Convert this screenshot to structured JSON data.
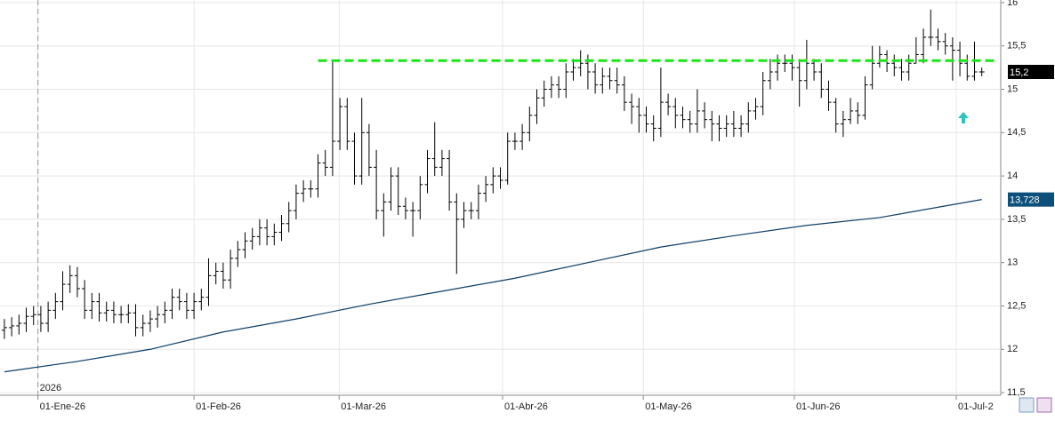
{
  "chart_data": {
    "type": "ohlc",
    "color": "#000000",
    "open": [
      12.22,
      12.25,
      12.27,
      12.3,
      12.38,
      12.4,
      12.3,
      12.45,
      12.55,
      12.75,
      12.85,
      12.7,
      12.45,
      12.55,
      12.42,
      12.45,
      12.4,
      12.4,
      12.42,
      12.25,
      12.3,
      12.35,
      12.4,
      12.45,
      12.6,
      12.55,
      12.45,
      12.55,
      12.6,
      12.85,
      12.9,
      12.8,
      13.05,
      13.15,
      13.25,
      13.3,
      13.4,
      13.3,
      13.35,
      13.45,
      13.6,
      13.8,
      13.85,
      13.85,
      14.15,
      14.1,
      14.4,
      14.8,
      14.4,
      14.0,
      14.5,
      14.1,
      13.6,
      13.7,
      14.0,
      13.65,
      13.6,
      13.6,
      13.9,
      14.2,
      14.1,
      14.2,
      13.7,
      13.5,
      13.6,
      13.6,
      13.8,
      13.9,
      14.0,
      13.95,
      14.4,
      14.4,
      14.5,
      14.7,
      14.9,
      15.0,
      15.05,
      15.0,
      15.2,
      15.25,
      15.3,
      15.2,
      15.05,
      15.15,
      15.1,
      15.05,
      14.85,
      14.8,
      14.7,
      14.6,
      14.55,
      14.85,
      14.8,
      14.7,
      14.65,
      14.6,
      14.75,
      14.65,
      14.6,
      14.55,
      14.6,
      14.55,
      14.6,
      14.75,
      14.8,
      15.1,
      15.2,
      15.3,
      15.3,
      15.25,
      15.1,
      15.3,
      15.2,
      15.0,
      14.85,
      14.6,
      14.65,
      14.75,
      14.7,
      15.05,
      15.3,
      15.4,
      15.3,
      15.25,
      15.2,
      15.3,
      15.4,
      15.6,
      15.6,
      15.55,
      15.5,
      15.45,
      15.3,
      15.15,
      15.2
    ],
    "high": [
      12.35,
      12.37,
      12.4,
      12.48,
      12.5,
      12.5,
      12.55,
      12.65,
      12.9,
      12.97,
      12.95,
      12.8,
      12.65,
      12.65,
      12.55,
      12.55,
      12.5,
      12.52,
      12.52,
      12.4,
      12.45,
      12.5,
      12.55,
      12.7,
      12.7,
      12.65,
      12.65,
      12.7,
      13.05,
      13.0,
      13.0,
      13.15,
      13.25,
      13.35,
      13.4,
      13.5,
      13.5,
      13.45,
      13.55,
      13.7,
      13.9,
      13.95,
      13.95,
      14.25,
      14.3,
      15.32,
      14.9,
      14.9,
      14.5,
      14.9,
      14.6,
      14.3,
      13.8,
      14.1,
      14.1,
      13.75,
      13.7,
      14.0,
      14.3,
      14.62,
      14.3,
      14.3,
      13.8,
      13.7,
      13.7,
      13.9,
      14.0,
      14.1,
      14.1,
      14.5,
      14.5,
      14.6,
      14.8,
      15.0,
      15.1,
      15.15,
      15.15,
      15.3,
      15.35,
      15.45,
      15.4,
      15.3,
      15.25,
      15.25,
      15.25,
      15.15,
      14.95,
      14.9,
      14.8,
      14.7,
      15.25,
      14.95,
      14.9,
      14.8,
      14.75,
      15.0,
      14.85,
      14.75,
      14.7,
      14.7,
      14.75,
      14.7,
      14.85,
      14.9,
      15.2,
      15.35,
      15.4,
      15.4,
      15.4,
      15.35,
      15.57,
      15.35,
      15.3,
      15.1,
      14.9,
      14.75,
      14.9,
      14.85,
      15.15,
      15.5,
      15.5,
      15.45,
      15.4,
      15.35,
      15.4,
      15.6,
      15.7,
      15.92,
      15.7,
      15.65,
      15.6,
      15.55,
      15.4,
      15.55,
      15.25
    ],
    "low": [
      12.12,
      12.15,
      12.17,
      12.2,
      12.28,
      12.2,
      12.2,
      12.35,
      12.45,
      12.65,
      12.6,
      12.35,
      12.35,
      12.32,
      12.32,
      12.3,
      12.3,
      12.3,
      12.15,
      12.15,
      12.2,
      12.25,
      12.3,
      12.35,
      12.45,
      12.35,
      12.35,
      12.45,
      12.5,
      12.75,
      12.7,
      12.7,
      12.95,
      13.05,
      13.15,
      13.2,
      13.2,
      13.2,
      13.25,
      13.35,
      13.5,
      13.7,
      13.75,
      13.75,
      14.0,
      14.0,
      14.3,
      14.3,
      13.9,
      13.9,
      14.0,
      13.5,
      13.3,
      13.6,
      13.55,
      13.5,
      13.3,
      13.5,
      13.8,
      14.0,
      14.0,
      13.6,
      12.87,
      13.4,
      13.5,
      13.5,
      13.7,
      13.8,
      13.85,
      13.9,
      14.3,
      14.3,
      14.4,
      14.6,
      14.8,
      14.9,
      14.9,
      14.9,
      15.1,
      15.15,
      15.0,
      14.95,
      14.95,
      15.0,
      14.95,
      14.75,
      14.6,
      14.5,
      14.5,
      14.4,
      14.45,
      14.7,
      14.55,
      14.55,
      14.5,
      14.5,
      14.55,
      14.4,
      14.4,
      14.45,
      14.45,
      14.45,
      14.5,
      14.65,
      14.7,
      15.0,
      15.1,
      15.2,
      15.1,
      14.8,
      15.0,
      15.1,
      14.9,
      14.75,
      14.5,
      14.45,
      14.6,
      14.6,
      14.65,
      15.0,
      15.25,
      15.2,
      15.15,
      15.1,
      15.1,
      15.3,
      15.3,
      15.5,
      15.45,
      15.4,
      15.1,
      15.15,
      15.1,
      15.1,
      15.15
    ],
    "close": [
      12.25,
      12.27,
      12.3,
      12.38,
      12.4,
      12.3,
      12.45,
      12.55,
      12.75,
      12.85,
      12.7,
      12.45,
      12.55,
      12.42,
      12.45,
      12.4,
      12.4,
      12.42,
      12.25,
      12.3,
      12.35,
      12.4,
      12.45,
      12.6,
      12.55,
      12.45,
      12.55,
      12.6,
      12.85,
      12.9,
      12.8,
      13.05,
      13.15,
      13.25,
      13.3,
      13.4,
      13.3,
      13.35,
      13.45,
      13.6,
      13.8,
      13.85,
      13.85,
      14.15,
      14.1,
      14.4,
      14.8,
      14.4,
      14.0,
      14.5,
      14.1,
      13.6,
      13.7,
      14.0,
      13.65,
      13.6,
      13.6,
      13.9,
      14.2,
      14.1,
      14.2,
      13.7,
      13.5,
      13.6,
      13.6,
      13.8,
      13.9,
      14.0,
      13.95,
      14.4,
      14.4,
      14.5,
      14.7,
      14.9,
      15.0,
      15.05,
      15.0,
      15.2,
      15.25,
      15.3,
      15.2,
      15.05,
      15.15,
      15.1,
      15.05,
      14.85,
      14.8,
      14.7,
      14.6,
      14.55,
      14.85,
      14.8,
      14.7,
      14.65,
      14.6,
      14.75,
      14.65,
      14.6,
      14.55,
      14.6,
      14.55,
      14.6,
      14.75,
      14.8,
      15.1,
      15.2,
      15.3,
      15.3,
      15.25,
      15.1,
      15.3,
      15.2,
      15.0,
      14.85,
      14.6,
      14.65,
      14.75,
      14.7,
      15.05,
      15.3,
      15.4,
      15.3,
      15.25,
      15.2,
      15.3,
      15.4,
      15.6,
      15.6,
      15.55,
      15.5,
      15.45,
      15.3,
      15.15,
      15.2,
      15.2
    ],
    "last_price": {
      "value": 15.2,
      "label": "15,2"
    },
    "moving_average": {
      "color": "#0b3d66",
      "x": [
        0,
        10,
        20,
        30,
        40,
        50,
        60,
        70,
        80,
        90,
        100,
        110,
        120,
        134
      ],
      "values": [
        11.74,
        11.86,
        12.0,
        12.2,
        12.35,
        12.52,
        12.67,
        12.82,
        13.0,
        13.18,
        13.31,
        13.43,
        13.52,
        13.728
      ],
      "last_label": {
        "value": 13.728,
        "label": "13,728"
      }
    },
    "resistance": {
      "value": 15.33,
      "x": [
        43,
        136
      ],
      "color": "#19e619"
    },
    "xlim": [
      -0.6,
      136.6
    ],
    "xticks": [
      {
        "value": 4.6,
        "label": "01-Ene-26"
      },
      {
        "value": 26.0,
        "label": "01-Feb-26"
      },
      {
        "value": 45.9,
        "label": "01-Mar-26"
      },
      {
        "value": 68.3,
        "label": "01-Abr-26"
      },
      {
        "value": 87.6,
        "label": "01-May-26"
      },
      {
        "value": 108.3,
        "label": "01-Jun-26"
      },
      {
        "value": 130.5,
        "label": "01-Jul-2"
      }
    ],
    "year_marker": {
      "value": 4.6,
      "label": "2026"
    },
    "ylim": [
      11.47,
      16.03
    ],
    "yticks": [
      {
        "value": 11.5,
        "label": "11,5"
      },
      12,
      {
        "value": 12.5,
        "label": "12,5"
      },
      13,
      {
        "value": 13.5,
        "label": "13,5"
      },
      14,
      {
        "value": 14.5,
        "label": "14,5"
      },
      15,
      {
        "value": 15.5,
        "label": "15,5"
      },
      16
    ],
    "grid": true
  }
}
